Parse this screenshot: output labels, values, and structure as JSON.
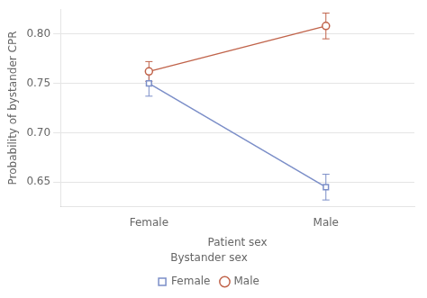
{
  "chart_data": {
    "type": "line",
    "xlabel": "Patient sex",
    "ylabel": "Probability of bystander CPR",
    "legend_title": "Bystander sex",
    "categories": [
      "Female",
      "Male"
    ],
    "series": [
      {
        "name": "Female",
        "color": "#7b8ec8",
        "marker": "square",
        "values": [
          0.75,
          0.645
        ],
        "errors": [
          0.013,
          0.013
        ]
      },
      {
        "name": "Male",
        "color": "#c0634a",
        "marker": "circle",
        "values": [
          0.762,
          0.808
        ],
        "errors": [
          0.01,
          0.013
        ]
      }
    ],
    "ylim": [
      0.625,
      0.825
    ],
    "yticks": [
      0.65,
      {
        "value": 0.7,
        "label": "0.70"
      },
      0.75,
      {
        "value": 0.8,
        "label": "0.80"
      }
    ],
    "grid": "y",
    "legend": "bottom"
  }
}
